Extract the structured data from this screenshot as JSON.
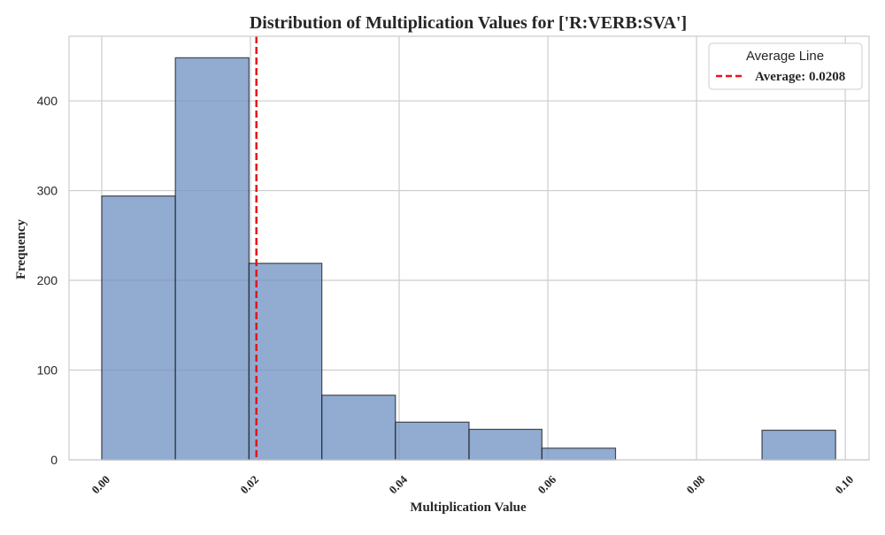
{
  "chart_data": {
    "type": "bar",
    "title": "Distribution of Multiplication Values for ['R:VERB:SVA']",
    "xlabel": "Multiplication Value",
    "ylabel": "Frequency",
    "xlim": [
      -0.0044,
      0.1032
    ],
    "ylim": [
      0,
      472
    ],
    "x_ticks": [
      0.0,
      0.02,
      0.04,
      0.06,
      0.08,
      0.1
    ],
    "x_tick_labels": [
      "0.00",
      "0.02",
      "0.04",
      "0.06",
      "0.08",
      "0.10"
    ],
    "y_ticks": [
      0,
      100,
      200,
      300,
      400
    ],
    "y_tick_labels": [
      "0",
      "100",
      "200",
      "300",
      "400"
    ],
    "bins": [
      {
        "x0": 0.0,
        "x1": 0.0099,
        "value": 294
      },
      {
        "x0": 0.0099,
        "x1": 0.0198,
        "value": 448
      },
      {
        "x0": 0.0198,
        "x1": 0.0296,
        "value": 219
      },
      {
        "x0": 0.0296,
        "x1": 0.0395,
        "value": 72
      },
      {
        "x0": 0.0395,
        "x1": 0.0494,
        "value": 42
      },
      {
        "x0": 0.0494,
        "x1": 0.0592,
        "value": 34
      },
      {
        "x0": 0.0592,
        "x1": 0.0691,
        "value": 13
      },
      {
        "x0": 0.0691,
        "x1": 0.079,
        "value": 0
      },
      {
        "x0": 0.079,
        "x1": 0.0888,
        "value": 0
      },
      {
        "x0": 0.0888,
        "x1": 0.0987,
        "value": 33
      }
    ],
    "average_line": {
      "value": 0.0208,
      "label": "Average: 0.0208"
    },
    "legend": {
      "title": "Average Line",
      "position": "top-right"
    },
    "grid": true,
    "colors": {
      "bar_fill": "#7293c4",
      "bar_edge": "#1a1a1a",
      "average_line": "#e8141a",
      "grid": "#cccccc",
      "frame": "#cccccc"
    }
  }
}
